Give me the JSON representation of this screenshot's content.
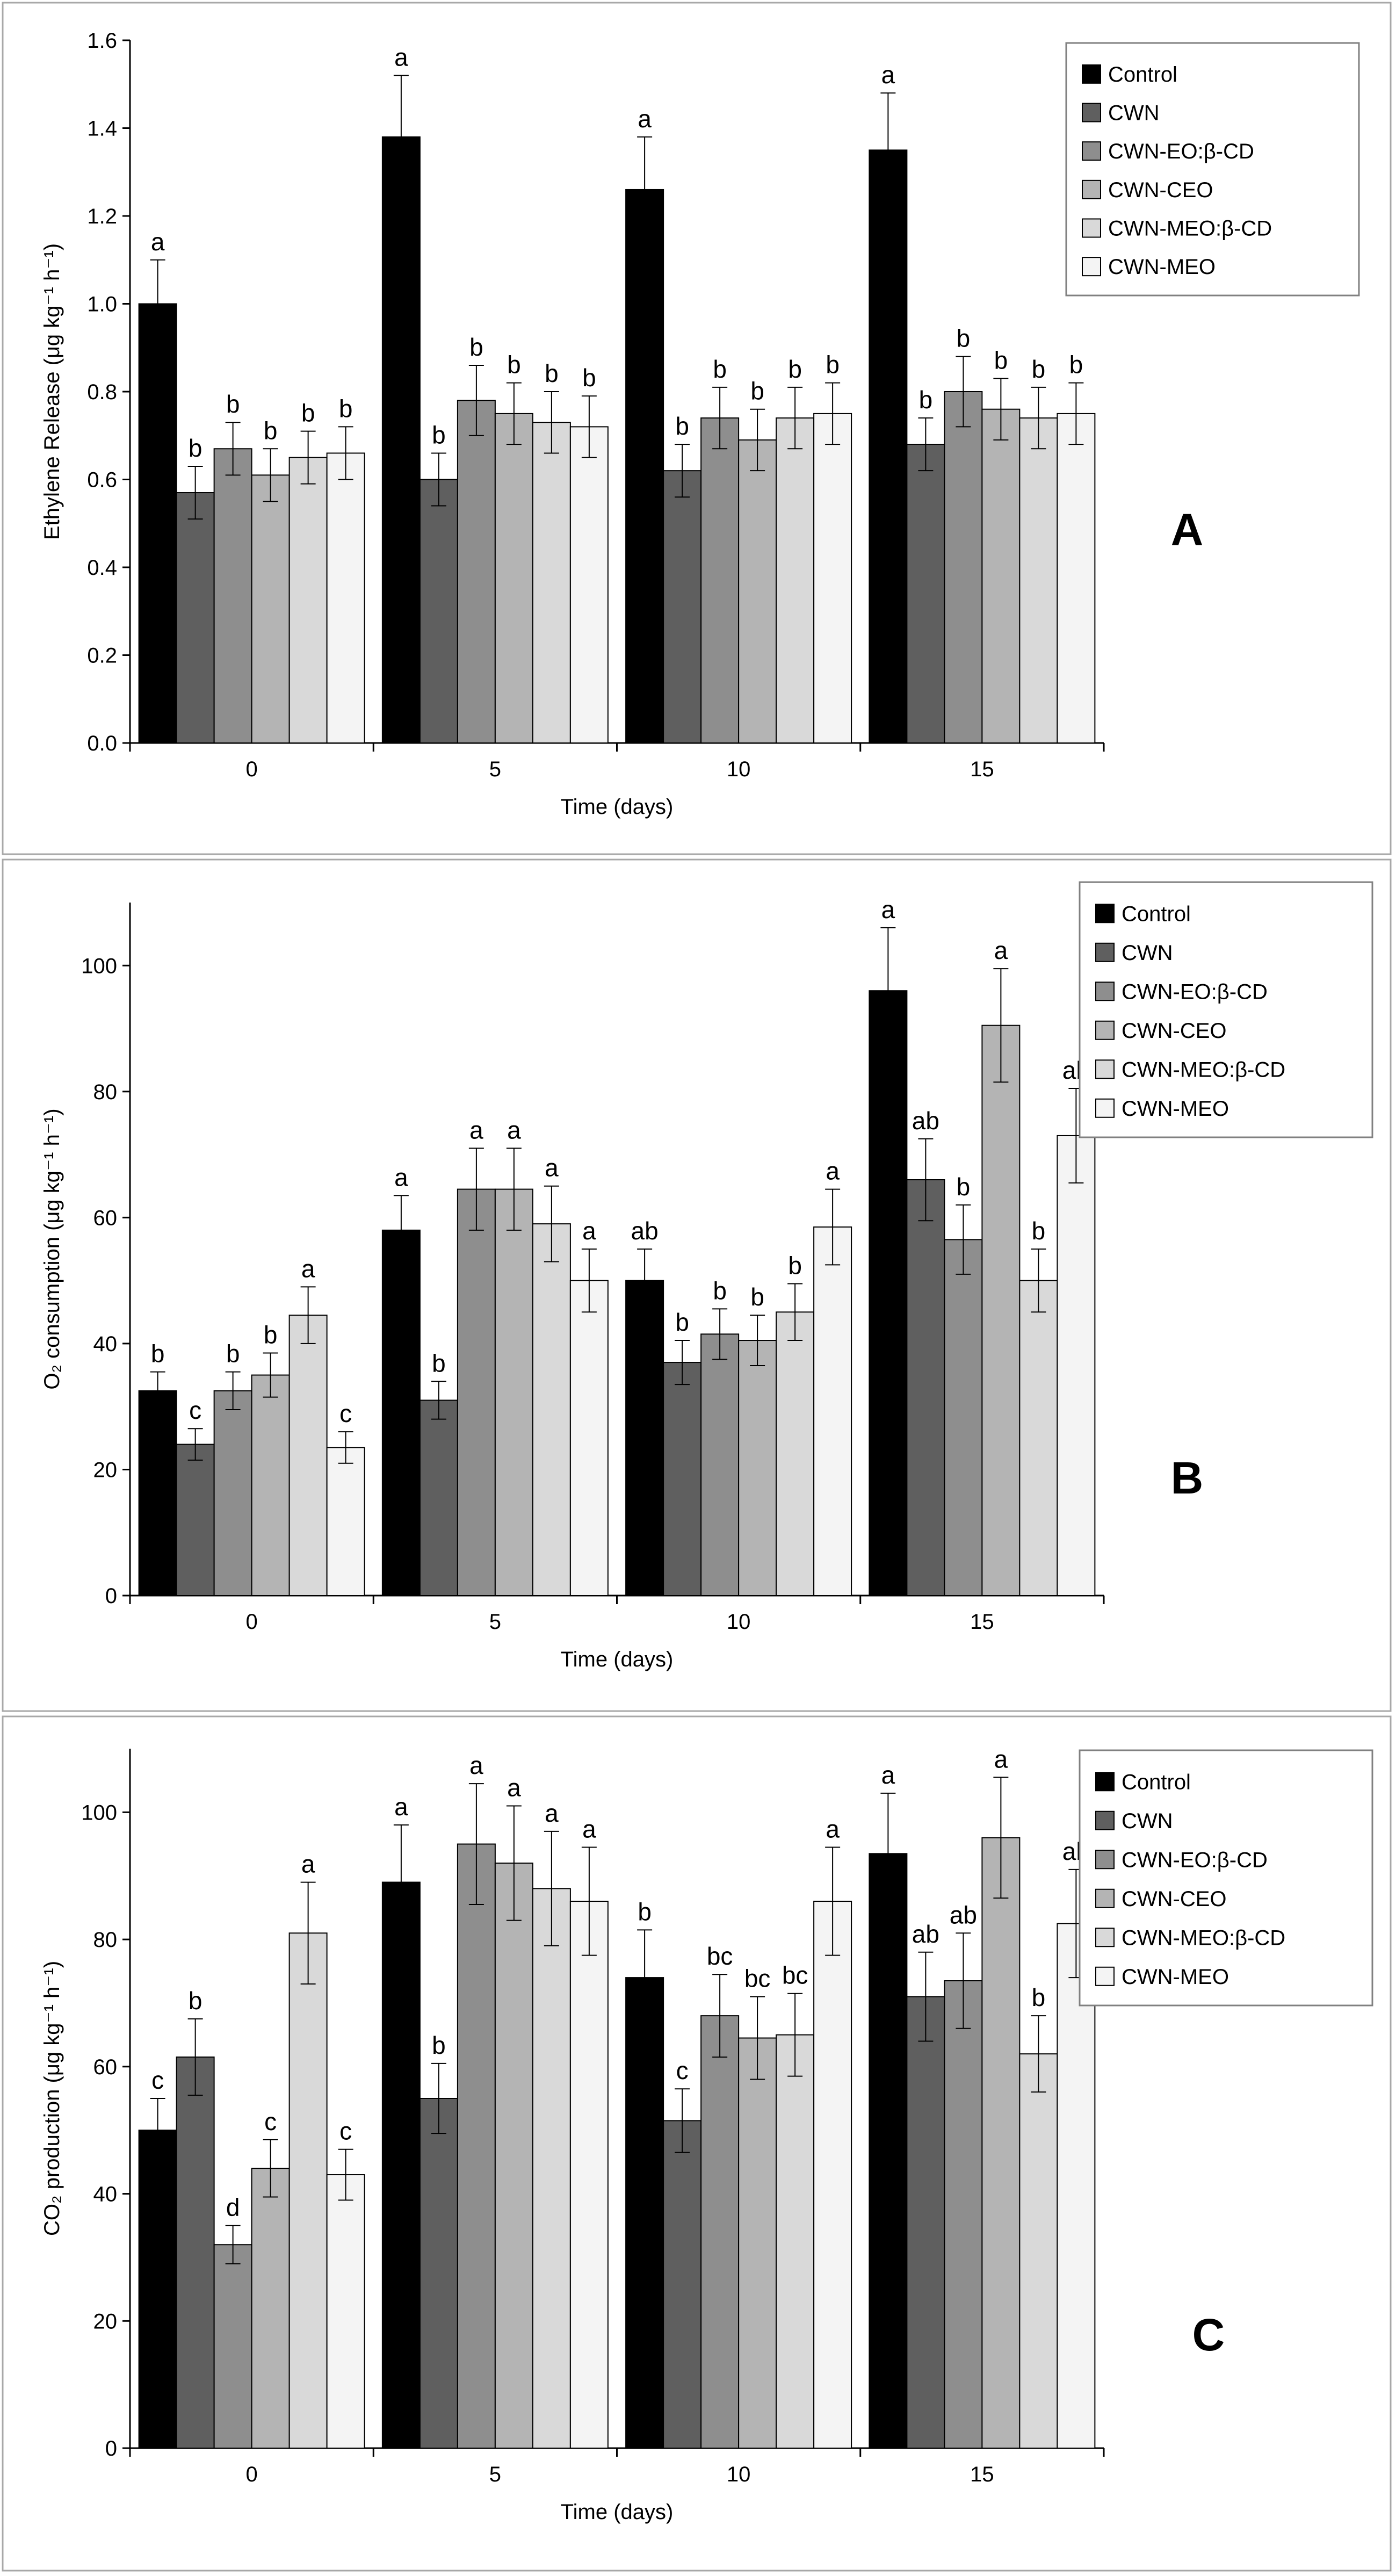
{
  "series_colors": [
    "#000000",
    "#5f5f5f",
    "#8e8e8e",
    "#b4b4b4",
    "#d9d9d9",
    "#f4f4f4"
  ],
  "chart_data": [
    {
      "type": "bar",
      "panel_label": "A",
      "title": "",
      "xlabel": "Time (days)",
      "ylabel": "Ethylene Release (μg kg⁻¹ h⁻¹)",
      "categories": [
        "0",
        "5",
        "10",
        "15"
      ],
      "ylim": [
        0,
        1.6
      ],
      "yticks": [
        "0.0",
        "0.2",
        "0.4",
        "0.6",
        "0.8",
        "1.0",
        "1.2",
        "1.4",
        "1.6"
      ],
      "legend_position": "top-right",
      "series": [
        {
          "name": "Control",
          "values": [
            1.0,
            1.38,
            1.26,
            1.35
          ],
          "errors": [
            0.1,
            0.14,
            0.12,
            0.13
          ],
          "labels": [
            "a",
            "a",
            "a",
            "a"
          ]
        },
        {
          "name": "CWN",
          "values": [
            0.57,
            0.6,
            0.62,
            0.68
          ],
          "errors": [
            0.06,
            0.06,
            0.06,
            0.06
          ],
          "labels": [
            "b",
            "b",
            "b",
            "b"
          ]
        },
        {
          "name": "CWN-EO:β-CD",
          "values": [
            0.67,
            0.78,
            0.74,
            0.8
          ],
          "errors": [
            0.06,
            0.08,
            0.07,
            0.08
          ],
          "labels": [
            "b",
            "b",
            "b",
            "b"
          ]
        },
        {
          "name": "CWN-CEO",
          "values": [
            0.61,
            0.75,
            0.69,
            0.76
          ],
          "errors": [
            0.06,
            0.07,
            0.07,
            0.07
          ],
          "labels": [
            "b",
            "b",
            "b",
            "b"
          ]
        },
        {
          "name": "CWN-MEO:β-CD",
          "values": [
            0.65,
            0.73,
            0.74,
            0.74
          ],
          "errors": [
            0.06,
            0.07,
            0.07,
            0.07
          ],
          "labels": [
            "b",
            "b",
            "b",
            "b"
          ]
        },
        {
          "name": "CWN-MEO",
          "values": [
            0.66,
            0.72,
            0.75,
            0.75
          ],
          "errors": [
            0.06,
            0.07,
            0.07,
            0.07
          ],
          "labels": [
            "b",
            "b",
            "b",
            "b"
          ]
        }
      ]
    },
    {
      "type": "bar",
      "panel_label": "B",
      "title": "",
      "xlabel": "Time (days)",
      "ylabel": "O₂ consumption (μg kg⁻¹ h⁻¹)",
      "categories": [
        "0",
        "5",
        "10",
        "15"
      ],
      "ylim": [
        0,
        110
      ],
      "yticks": [
        "0",
        "20",
        "40",
        "60",
        "80",
        "100"
      ],
      "legend_position": "top-right",
      "series": [
        {
          "name": "Control",
          "values": [
            32.5,
            58,
            50,
            96
          ],
          "errors": [
            3,
            5.5,
            5,
            10
          ],
          "labels": [
            "b",
            "a",
            "ab",
            "a"
          ]
        },
        {
          "name": "CWN",
          "values": [
            24,
            31,
            37,
            66
          ],
          "errors": [
            2.5,
            3,
            3.5,
            6.5
          ],
          "labels": [
            "c",
            "b",
            "b",
            "ab"
          ]
        },
        {
          "name": "CWN-EO:β-CD",
          "values": [
            32.5,
            64.5,
            41.5,
            56.5
          ],
          "errors": [
            3,
            6.5,
            4,
            5.5
          ],
          "labels": [
            "b",
            "a",
            "b",
            "b"
          ]
        },
        {
          "name": "CWN-CEO",
          "values": [
            35,
            64.5,
            40.5,
            90.5
          ],
          "errors": [
            3.5,
            6.5,
            4,
            9
          ],
          "labels": [
            "b",
            "a",
            "b",
            "a"
          ]
        },
        {
          "name": "CWN-MEO:β-CD",
          "values": [
            44.5,
            59,
            45,
            50
          ],
          "errors": [
            4.5,
            6,
            4.5,
            5
          ],
          "labels": [
            "a",
            "a",
            "b",
            "b"
          ]
        },
        {
          "name": "CWN-MEO",
          "values": [
            23.5,
            50,
            58.5,
            73
          ],
          "errors": [
            2.5,
            5,
            6,
            7.5
          ],
          "labels": [
            "c",
            "a",
            "a",
            "ab"
          ]
        }
      ]
    },
    {
      "type": "bar",
      "panel_label": "C",
      "title": "",
      "xlabel": "Time (days)",
      "ylabel": "CO₂ production (μg kg⁻¹ h⁻¹)",
      "categories": [
        "0",
        "5",
        "10",
        "15"
      ],
      "ylim": [
        0,
        110
      ],
      "yticks": [
        "0",
        "20",
        "40",
        "60",
        "80",
        "100"
      ],
      "legend_position": "top-right",
      "series": [
        {
          "name": "Control",
          "values": [
            50,
            89,
            74,
            93.5
          ],
          "errors": [
            5,
            9,
            7.5,
            9.5
          ],
          "labels": [
            "c",
            "a",
            "b",
            "a"
          ]
        },
        {
          "name": "CWN",
          "values": [
            61.5,
            55,
            51.5,
            71
          ],
          "errors": [
            6,
            5.5,
            5,
            7
          ],
          "labels": [
            "b",
            "b",
            "c",
            "ab"
          ]
        },
        {
          "name": "CWN-EO:β-CD",
          "values": [
            32,
            95,
            68,
            73.5
          ],
          "errors": [
            3,
            9.5,
            6.5,
            7.5
          ],
          "labels": [
            "d",
            "a",
            "bc",
            "ab"
          ]
        },
        {
          "name": "CWN-CEO",
          "values": [
            44,
            92,
            64.5,
            96
          ],
          "errors": [
            4.5,
            9,
            6.5,
            9.5
          ],
          "labels": [
            "c",
            "a",
            "bc",
            "a"
          ]
        },
        {
          "name": "CWN-MEO:β-CD",
          "values": [
            81,
            88,
            65,
            62
          ],
          "errors": [
            8,
            9,
            6.5,
            6
          ],
          "labels": [
            "a",
            "a",
            "bc",
            "b"
          ]
        },
        {
          "name": "CWN-MEO",
          "values": [
            43,
            86,
            86,
            82.5
          ],
          "errors": [
            4,
            8.5,
            8.5,
            8.5
          ],
          "labels": [
            "c",
            "a",
            "a",
            "ab"
          ]
        }
      ]
    }
  ]
}
